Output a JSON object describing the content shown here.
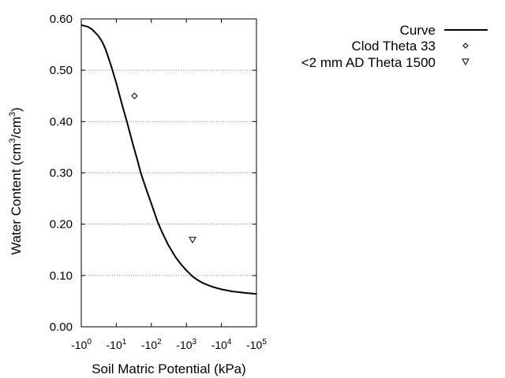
{
  "chart_data": {
    "type": "line",
    "x_scale": "log",
    "xlabel": "Soil Matric Potential (kPa)",
    "ylabel_main": "Water Content (cm",
    "ylabel_sup1": "3",
    "ylabel_mid": "/cm",
    "ylabel_sup2": "3",
    "ylabel_end": ")",
    "xlim": [
      1,
      100000
    ],
    "ylim": [
      0,
      0.6
    ],
    "y_ticks": [
      {
        "value": 0.0,
        "label": "0.00"
      },
      {
        "value": 0.1,
        "label": "0.10"
      },
      {
        "value": 0.2,
        "label": "0.20"
      },
      {
        "value": 0.3,
        "label": "0.30"
      },
      {
        "value": 0.4,
        "label": "0.40"
      },
      {
        "value": 0.5,
        "label": "0.50"
      },
      {
        "value": 0.6,
        "label": "0.60"
      }
    ],
    "x_ticks": [
      {
        "value": 1,
        "base": "-10",
        "exp": "0"
      },
      {
        "value": 10,
        "base": "-10",
        "exp": "1"
      },
      {
        "value": 100,
        "base": "-10",
        "exp": "2"
      },
      {
        "value": 1000,
        "base": "-10",
        "exp": "3"
      },
      {
        "value": 10000,
        "base": "-10",
        "exp": "4"
      },
      {
        "value": 100000,
        "base": "-10",
        "exp": "5"
      }
    ],
    "grid": "horizontal-dotted",
    "legend_position": "top-right",
    "series": [
      {
        "name": "Curve",
        "style": "line",
        "color": "#000000",
        "x": [
          1,
          1.5,
          2,
          3,
          4,
          5,
          7,
          10,
          15,
          20,
          30,
          40,
          50,
          70,
          100,
          150,
          200,
          300,
          500,
          700,
          1000,
          1500,
          2000,
          3000,
          5000,
          7000,
          10000,
          20000,
          50000,
          100000
        ],
        "y": [
          0.588,
          0.585,
          0.58,
          0.568,
          0.555,
          0.54,
          0.51,
          0.475,
          0.43,
          0.4,
          0.355,
          0.325,
          0.3,
          0.27,
          0.24,
          0.205,
          0.185,
          0.16,
          0.135,
          0.122,
          0.11,
          0.098,
          0.092,
          0.085,
          0.079,
          0.076,
          0.073,
          0.069,
          0.066,
          0.064
        ]
      },
      {
        "name": "Clod Theta 33",
        "style": "marker",
        "marker": "diamond",
        "x": [
          33
        ],
        "y": [
          0.45
        ]
      },
      {
        "name": "<2 mm AD Theta 1500",
        "style": "marker",
        "marker": "triangle-down",
        "x": [
          1500
        ],
        "y": [
          0.17
        ]
      }
    ]
  }
}
